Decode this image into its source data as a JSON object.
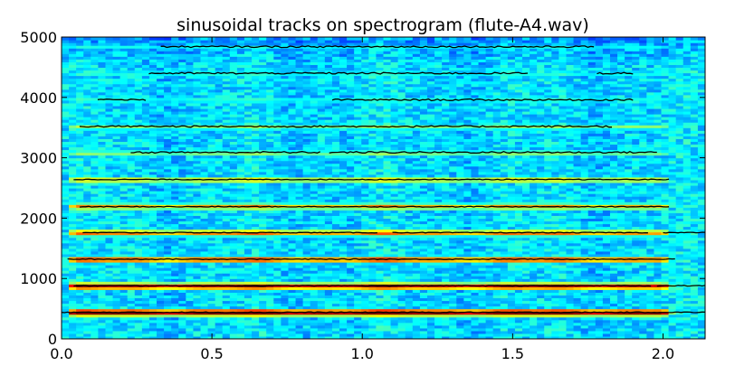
{
  "chart_data": {
    "type": "heatmap",
    "title": "sinusoidal tracks on spectrogram (flute-A4.wav)",
    "xlabel": "",
    "ylabel": "",
    "xlim": [
      0.0,
      2.14
    ],
    "ylim": [
      0,
      5000
    ],
    "x_ticks": [
      "0.0",
      "0.5",
      "1.0",
      "1.5",
      "2.0"
    ],
    "y_ticks": [
      "0",
      "1000",
      "2000",
      "3000",
      "4000",
      "5000"
    ],
    "colormap": "jet",
    "note_start_s": 0.04,
    "note_end_s": 2.0,
    "harmonics": [
      {
        "freq": 440,
        "level": 1.0
      },
      {
        "freq": 880,
        "level": 0.93
      },
      {
        "freq": 1320,
        "level": 0.8
      },
      {
        "freq": 1760,
        "level": 0.74
      },
      {
        "freq": 2200,
        "level": 0.7
      },
      {
        "freq": 2640,
        "level": 0.62
      },
      {
        "freq": 3080,
        "level": 0.5
      },
      {
        "freq": 3520,
        "level": 0.52
      },
      {
        "freq": 3960,
        "level": 0.42
      },
      {
        "freq": 4400,
        "level": 0.4
      },
      {
        "freq": 4840,
        "level": 0.38
      }
    ],
    "tracks": [
      {
        "freq": 440,
        "segments": [
          [
            0.0,
            2.14
          ]
        ]
      },
      {
        "freq": 880,
        "segments": [
          [
            0.04,
            1.96
          ],
          [
            1.98,
            2.14
          ]
        ]
      },
      {
        "freq": 1320,
        "segments": [
          [
            0.02,
            2.04
          ]
        ]
      },
      {
        "freq": 1760,
        "segments": [
          [
            0.07,
            1.05
          ],
          [
            1.1,
            1.95
          ],
          [
            2.0,
            2.14
          ]
        ]
      },
      {
        "freq": 2190,
        "segments": [
          [
            0.06,
            2.02
          ]
        ]
      },
      {
        "freq": 2640,
        "segments": [
          [
            0.04,
            2.02
          ]
        ]
      },
      {
        "freq": 3090,
        "segments": [
          [
            0.23,
            0.86
          ],
          [
            0.89,
            1.98
          ]
        ]
      },
      {
        "freq": 3520,
        "segments": [
          [
            0.06,
            1.83
          ]
        ]
      },
      {
        "freq": 3960,
        "segments": [
          [
            0.12,
            0.28
          ],
          [
            0.9,
            1.9
          ]
        ]
      },
      {
        "freq": 4400,
        "segments": [
          [
            0.29,
            1.55
          ],
          [
            1.78,
            1.9
          ]
        ]
      },
      {
        "freq": 4840,
        "segments": [
          [
            0.33,
            1.77
          ]
        ]
      }
    ]
  }
}
